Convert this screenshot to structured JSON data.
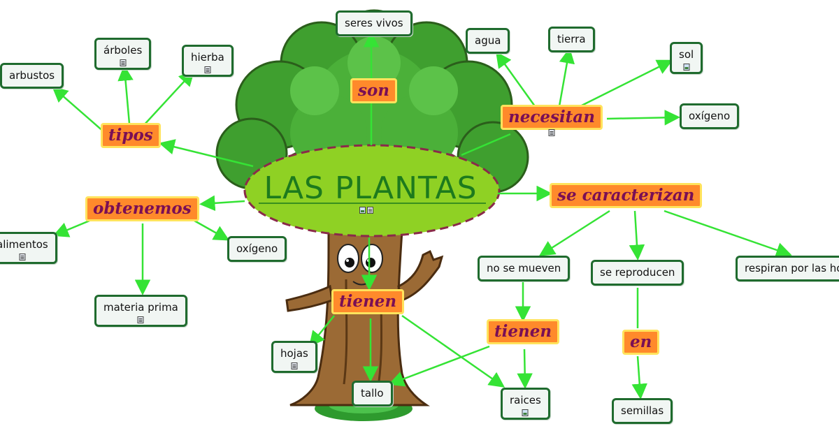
{
  "title": "LAS PLANTAS",
  "link_phrases": {
    "son": "son",
    "tipos": "tipos",
    "necesitan": "necesitan",
    "obtenemos": "obtenemos",
    "se_caracterizan": "se caracterizan",
    "tienen_1": "tienen",
    "tienen_2": "tienen",
    "en": "en"
  },
  "concepts": {
    "seres_vivos": "seres vivos",
    "arbustos": "arbustos",
    "arboles": "árboles",
    "hierba": "hierba",
    "agua": "agua",
    "tierra": "tierra",
    "sol": "sol",
    "oxigeno_1": "oxígeno",
    "alimentos": "alimentos",
    "oxigeno_2": "oxígeno",
    "materia_prima": "materia prima",
    "no_se_mueven": "no se mueven",
    "se_reproducen": "se reproducen",
    "respiran": "respiran por las hojas",
    "hojas": "hojas",
    "tallo": "tallo",
    "raices": "raices",
    "semillas": "semillas"
  },
  "colors": {
    "edge": "#35e335",
    "oval_fill": "#8fd124",
    "oval_border": "#8a2a4a",
    "link_fill": "#ff8a2b",
    "link_border": "#ffe35c",
    "link_text": "#7a0f55",
    "title_text": "#1d7a1d",
    "concept_border": "#1f6b2e"
  },
  "icons": [
    "document-icon",
    "image-icon",
    "tree-illustration"
  ]
}
